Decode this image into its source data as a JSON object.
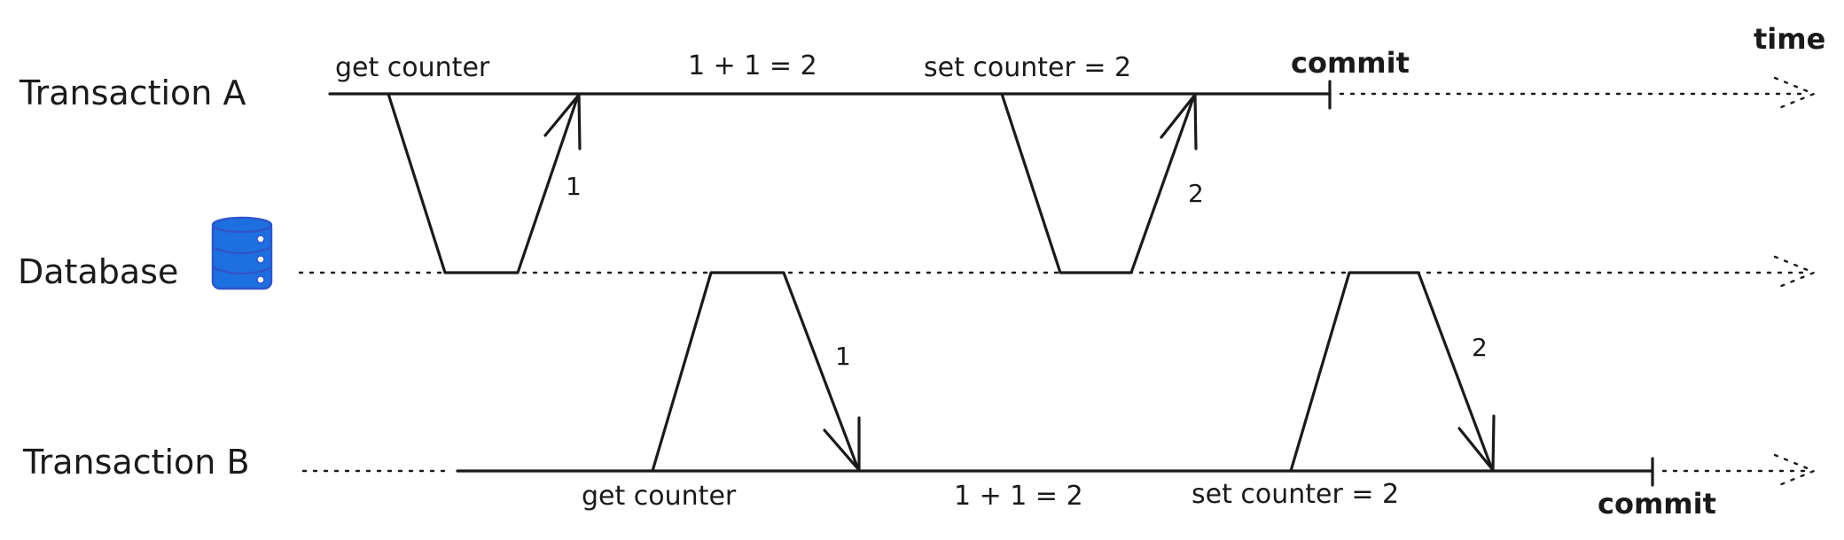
{
  "lanes": {
    "transaction_a": "Transaction A",
    "database": "Database",
    "transaction_b": "Transaction B"
  },
  "time_label": "time",
  "transaction_a": {
    "get": "get counter",
    "compute": "1 + 1 = 2",
    "set": "set counter = 2",
    "commit": "commit",
    "read_value": "1",
    "write_value": "2"
  },
  "transaction_b": {
    "get": "get counter",
    "compute": "1 + 1 = 2",
    "set": "set counter = 2",
    "commit": "commit",
    "read_value": "1",
    "write_value": "2"
  },
  "icons": {
    "database": "database-icon"
  },
  "colors": {
    "ink": "#1a1a1a",
    "database_fill": "#1e6fe0",
    "database_stroke": "#2f55c9"
  }
}
